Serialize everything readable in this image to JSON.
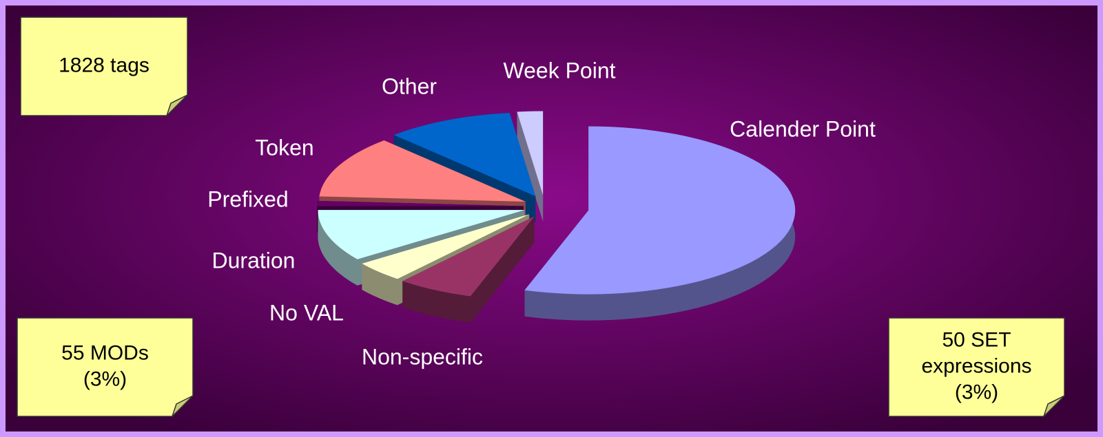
{
  "chart_data": {
    "type": "pie3d",
    "categories": [
      "Calender Point",
      "Non-specific",
      "No VAL",
      "Duration",
      "Prefixed",
      "Token",
      "Other",
      "Week Point"
    ],
    "values": [
      55,
      6,
      4,
      10,
      1,
      12,
      10,
      2
    ],
    "colors": [
      "#9999ff",
      "#993366",
      "#ffffcc",
      "#ccffff",
      "#660066",
      "#ff8080",
      "#0066cc",
      "#ccccff"
    ],
    "annotations": [
      [
        "1828 tags"
      ],
      [
        "55 MODs",
        "(3%)"
      ],
      [
        "50 SET",
        "expressions",
        "(3%)"
      ]
    ]
  }
}
